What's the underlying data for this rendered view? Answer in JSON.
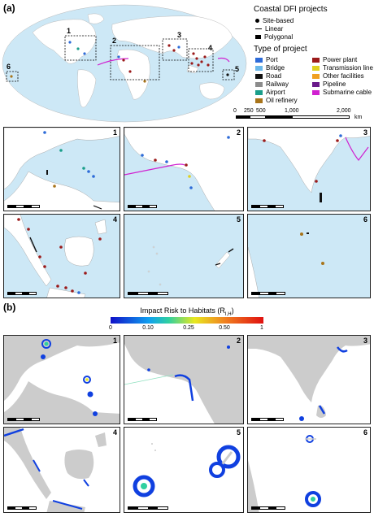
{
  "panel_a": {
    "tag": "(a)",
    "legend": {
      "title": "Coastal DFI projects",
      "geometry": [
        {
          "label": "Site-based",
          "symbol": "dot"
        },
        {
          "label": "Linear",
          "symbol": "line"
        },
        {
          "label": "Polygonal",
          "symbol": "box"
        }
      ],
      "type_title": "Type of project",
      "types_left": [
        {
          "label": "Port",
          "color": "#2d6bd8"
        },
        {
          "label": "Bridge",
          "color": "#6ab8ea"
        },
        {
          "label": "Road",
          "color": "#111111"
        },
        {
          "label": "Railway",
          "color": "#8c8c8c"
        },
        {
          "label": "Airport",
          "color": "#1a9e8a"
        },
        {
          "label": "Oil refinery",
          "color": "#a8741a"
        }
      ],
      "types_right": [
        {
          "label": "Power plant",
          "color": "#9b1a1a"
        },
        {
          "label": "Transmission line",
          "color": "#e0d020"
        },
        {
          "label": "Other facilities",
          "color": "#f0a020"
        },
        {
          "label": "Pipeline",
          "color": "#6a1a8a"
        },
        {
          "label": "Submarine cable",
          "color": "#d020d0"
        }
      ]
    },
    "scale": {
      "ticks": [
        "0",
        "250",
        "500",
        "1,000",
        "2,000"
      ],
      "unit": "km"
    },
    "inset_labels": [
      "1",
      "2",
      "3",
      "4",
      "5",
      "6"
    ]
  },
  "panel_b": {
    "tag": "(b)",
    "colorbar": {
      "title": "Impact Risk to Habitats (R",
      "title_sub": "I,H",
      "title_end": ")",
      "ticks": [
        "0",
        "0.10",
        "0.25",
        "0.50",
        "1"
      ]
    },
    "inset_labels": [
      "1",
      "2",
      "3",
      "4",
      "5",
      "6"
    ]
  }
}
